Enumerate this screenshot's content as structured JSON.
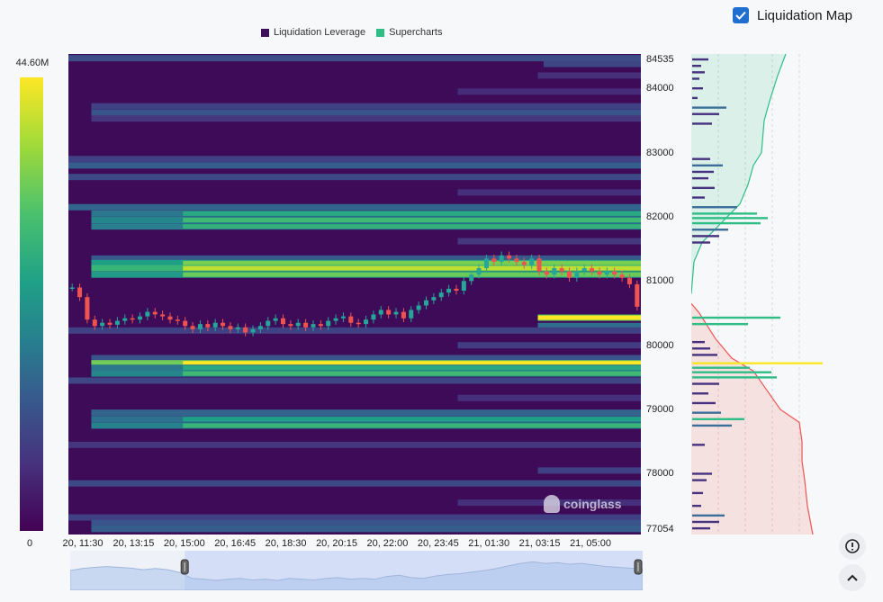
{
  "toggle": {
    "label": "Liquidation Map",
    "checked": true
  },
  "colors": {
    "leverage": "#3b0f5a",
    "supercharts": "#2ebd85",
    "accent": "#1f6fd1",
    "price_up": "#26a69a",
    "price_down": "#ef5350"
  },
  "colorbar": {
    "max_label": "44.60M",
    "min_label": "0"
  },
  "watermark": "coinglass",
  "icons": {
    "alert": "alert-circle-icon",
    "collapse": "chevron-up-icon"
  },
  "chart_data": {
    "type": "heatmap",
    "legend": [
      {
        "name": "Liquidation Leverage",
        "color": "#3b0f5a"
      },
      {
        "name": "Supercharts",
        "color": "#2ebd85"
      }
    ],
    "legend_placement": "top-center",
    "x_ticks": [
      "20, 11:30",
      "20, 13:15",
      "20, 15:00",
      "20, 16:45",
      "20, 18:30",
      "20, 20:15",
      "20, 22:00",
      "20, 23:45",
      "21, 01:30",
      "21, 03:15",
      "21, 05:00"
    ],
    "y_ticks": [
      "84535",
      "84000",
      "83000",
      "82000",
      "81000",
      "80000",
      "79000",
      "78000",
      "77054"
    ],
    "y_tick_values": [
      84535,
      84000,
      83000,
      82000,
      81000,
      80000,
      79000,
      78000,
      77054
    ],
    "ylim": [
      77054,
      84535
    ],
    "colorbar_range": [
      0,
      44.6
    ],
    "bands": [
      {
        "price": 84470,
        "start": 0.0,
        "intensity": 0.35
      },
      {
        "price": 84380,
        "start": 0.83,
        "intensity": 0.32
      },
      {
        "price": 84200,
        "start": 0.82,
        "intensity": 0.22
      },
      {
        "price": 83950,
        "start": 0.68,
        "intensity": 0.2
      },
      {
        "price": 83720,
        "start": 0.04,
        "intensity": 0.3
      },
      {
        "price": 83620,
        "start": 0.04,
        "intensity": 0.38
      },
      {
        "price": 83530,
        "start": 0.04,
        "intensity": 0.25
      },
      {
        "price": 82900,
        "start": 0.0,
        "intensity": 0.3
      },
      {
        "price": 82800,
        "start": 0.0,
        "intensity": 0.42
      },
      {
        "price": 82620,
        "start": 0.0,
        "intensity": 0.33
      },
      {
        "price": 82380,
        "start": 0.68,
        "intensity": 0.22
      },
      {
        "price": 82150,
        "start": 0.0,
        "intensity": 0.45
      },
      {
        "price": 82050,
        "start": 0.04,
        "intensity": 0.55
      },
      {
        "price": 81950,
        "start": 0.04,
        "intensity": 0.62
      },
      {
        "price": 81850,
        "start": 0.04,
        "intensity": 0.58
      },
      {
        "price": 81620,
        "start": 0.68,
        "intensity": 0.25
      },
      {
        "price": 81350,
        "start": 0.04,
        "intensity": 0.4
      },
      {
        "price": 81280,
        "start": 0.04,
        "intensity": 0.72
      },
      {
        "price": 81200,
        "start": 0.04,
        "intensity": 0.82
      },
      {
        "price": 81100,
        "start": 0.04,
        "intensity": 0.7
      },
      {
        "price": 80430,
        "start": 0.82,
        "intensity": 0.9
      },
      {
        "price": 80300,
        "start": 0.82,
        "intensity": 0.5
      },
      {
        "price": 80230,
        "start": 0.0,
        "intensity": 0.3
      },
      {
        "price": 80000,
        "start": 0.68,
        "intensity": 0.28
      },
      {
        "price": 79800,
        "start": 0.04,
        "intensity": 0.38
      },
      {
        "price": 79720,
        "start": 0.04,
        "intensity": 0.95
      },
      {
        "price": 79650,
        "start": 0.04,
        "intensity": 0.55
      },
      {
        "price": 79560,
        "start": 0.04,
        "intensity": 0.62
      },
      {
        "price": 79450,
        "start": 0.0,
        "intensity": 0.32
      },
      {
        "price": 79180,
        "start": 0.68,
        "intensity": 0.22
      },
      {
        "price": 78950,
        "start": 0.04,
        "intensity": 0.45
      },
      {
        "price": 78850,
        "start": 0.04,
        "intensity": 0.52
      },
      {
        "price": 78750,
        "start": 0.04,
        "intensity": 0.6
      },
      {
        "price": 78450,
        "start": 0.0,
        "intensity": 0.25
      },
      {
        "price": 78050,
        "start": 0.82,
        "intensity": 0.3
      },
      {
        "price": 77850,
        "start": 0.0,
        "intensity": 0.33
      },
      {
        "price": 77550,
        "start": 0.68,
        "intensity": 0.22
      },
      {
        "price": 77320,
        "start": 0.0,
        "intensity": 0.3
      },
      {
        "price": 77230,
        "start": 0.04,
        "intensity": 0.38
      },
      {
        "price": 77140,
        "start": 0.04,
        "intensity": 0.42
      }
    ],
    "price_series": [
      80900,
      80750,
      80400,
      80300,
      80350,
      80320,
      80380,
      80420,
      80400,
      80450,
      80520,
      80480,
      80450,
      80400,
      80380,
      80300,
      80250,
      80330,
      80280,
      80350,
      80300,
      80250,
      80280,
      80200,
      80250,
      80300,
      80380,
      80420,
      80330,
      80300,
      80350,
      80280,
      80330,
      80300,
      80380,
      80420,
      80450,
      80350,
      80330,
      80400,
      80480,
      80550,
      80480,
      80520,
      80420,
      80550,
      80620,
      80700,
      80750,
      80820,
      80880,
      80850,
      81000,
      81100,
      81200,
      81350,
      81300,
      81400,
      81350,
      81300,
      81250,
      81350,
      81150,
      81100,
      81200,
      81150,
      81050,
      81150,
      81200,
      81150,
      81100,
      81150,
      81100,
      81050,
      80950,
      80600
    ],
    "profile": {
      "type": "bar",
      "short_rows": [
        {
          "price": 84450,
          "value": 0.18
        },
        {
          "price": 84350,
          "value": 0.1
        },
        {
          "price": 84250,
          "value": 0.14
        },
        {
          "price": 84150,
          "value": 0.08
        },
        {
          "price": 84000,
          "value": 0.12
        },
        {
          "price": 83850,
          "value": 0.06
        },
        {
          "price": 83700,
          "value": 0.38
        },
        {
          "price": 83600,
          "value": 0.3
        },
        {
          "price": 83450,
          "value": 0.22
        },
        {
          "price": 82900,
          "value": 0.2
        },
        {
          "price": 82800,
          "value": 0.34
        },
        {
          "price": 82700,
          "value": 0.24
        },
        {
          "price": 82600,
          "value": 0.18
        },
        {
          "price": 82450,
          "value": 0.25
        },
        {
          "price": 82300,
          "value": 0.14
        },
        {
          "price": 82150,
          "value": 0.5
        },
        {
          "price": 82050,
          "value": 0.72
        },
        {
          "price": 81980,
          "value": 0.84
        },
        {
          "price": 81900,
          "value": 0.76
        },
        {
          "price": 81800,
          "value": 0.4
        },
        {
          "price": 81700,
          "value": 0.3
        },
        {
          "price": 81600,
          "value": 0.2
        }
      ],
      "long_rows": [
        {
          "price": 80430,
          "value": 0.98
        },
        {
          "price": 80330,
          "value": 0.62
        },
        {
          "price": 80050,
          "value": 0.14
        },
        {
          "price": 79950,
          "value": 0.2
        },
        {
          "price": 79850,
          "value": 0.28
        },
        {
          "price": 79720,
          "value": 1.45
        },
        {
          "price": 79650,
          "value": 0.64
        },
        {
          "price": 79580,
          "value": 0.88
        },
        {
          "price": 79500,
          "value": 0.94
        },
        {
          "price": 79400,
          "value": 0.3
        },
        {
          "price": 79250,
          "value": 0.18
        },
        {
          "price": 79100,
          "value": 0.26
        },
        {
          "price": 78950,
          "value": 0.32
        },
        {
          "price": 78850,
          "value": 0.58
        },
        {
          "price": 78750,
          "value": 0.44
        },
        {
          "price": 78450,
          "value": 0.14
        },
        {
          "price": 78000,
          "value": 0.22
        },
        {
          "price": 77900,
          "value": 0.16
        },
        {
          "price": 77700,
          "value": 0.12
        },
        {
          "price": 77500,
          "value": 0.1
        },
        {
          "price": 77350,
          "value": 0.36
        },
        {
          "price": 77250,
          "value": 0.3
        },
        {
          "price": 77150,
          "value": 0.2
        }
      ],
      "short_cumulative": [
        [
          84535,
          0.7
        ],
        [
          84200,
          0.64
        ],
        [
          83800,
          0.58
        ],
        [
          83500,
          0.54
        ],
        [
          83000,
          0.52
        ],
        [
          82800,
          0.46
        ],
        [
          82500,
          0.42
        ],
        [
          82200,
          0.36
        ],
        [
          81900,
          0.22
        ],
        [
          81600,
          0.08
        ],
        [
          81300,
          0.02
        ],
        [
          80800,
          0.0
        ]
      ],
      "long_cumulative": [
        [
          80650,
          0.0
        ],
        [
          80500,
          0.06
        ],
        [
          80300,
          0.12
        ],
        [
          80100,
          0.18
        ],
        [
          79800,
          0.3
        ],
        [
          79600,
          0.46
        ],
        [
          79300,
          0.56
        ],
        [
          79000,
          0.66
        ],
        [
          78800,
          0.8
        ],
        [
          78500,
          0.82
        ],
        [
          78200,
          0.82
        ],
        [
          77900,
          0.84
        ],
        [
          77500,
          0.86
        ],
        [
          77054,
          0.9
        ]
      ]
    },
    "navigator": [
      0.5,
      0.55,
      0.58,
      0.6,
      0.58,
      0.56,
      0.52,
      0.55,
      0.52,
      0.45,
      0.3,
      0.28,
      0.25,
      0.28,
      0.3,
      0.26,
      0.28,
      0.25,
      0.3,
      0.28,
      0.26,
      0.3,
      0.32,
      0.28,
      0.3,
      0.28,
      0.35,
      0.38,
      0.32,
      0.3,
      0.36,
      0.4,
      0.42,
      0.46,
      0.5,
      0.55,
      0.62,
      0.68,
      0.72,
      0.68,
      0.7,
      0.66,
      0.68,
      0.64,
      0.6,
      0.58,
      0.56,
      0.55
    ],
    "navigator_range": [
      0.2,
      1.0
    ]
  }
}
